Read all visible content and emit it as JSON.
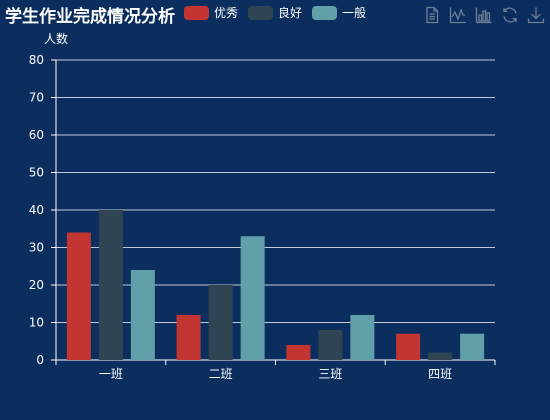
{
  "colors": {
    "background": "#0b2e5e",
    "series": [
      "#c23531",
      "#2f4554",
      "#61a0a8"
    ],
    "axis": "#ffffff",
    "toolbox": "#6f7f96"
  },
  "toolbox": {
    "icons": [
      "data-view-icon",
      "line-chart-icon",
      "bar-chart-icon",
      "refresh-icon",
      "download-icon"
    ]
  },
  "chart_data": {
    "type": "bar",
    "title": "学生作业完成情况分析",
    "ylabel": "人数",
    "xlabel": "",
    "categories": [
      "一班",
      "二班",
      "三班",
      "四班"
    ],
    "series": [
      {
        "name": "优秀",
        "values": [
          34,
          12,
          4,
          7
        ]
      },
      {
        "name": "良好",
        "values": [
          40,
          20,
          8,
          2
        ]
      },
      {
        "name": "一般",
        "values": [
          24,
          33,
          12,
          7
        ]
      }
    ],
    "ylim": [
      0,
      80
    ],
    "yticks": [
      0,
      10,
      20,
      30,
      40,
      50,
      60,
      70,
      80
    ],
    "grid": true,
    "legend_position": "top"
  }
}
